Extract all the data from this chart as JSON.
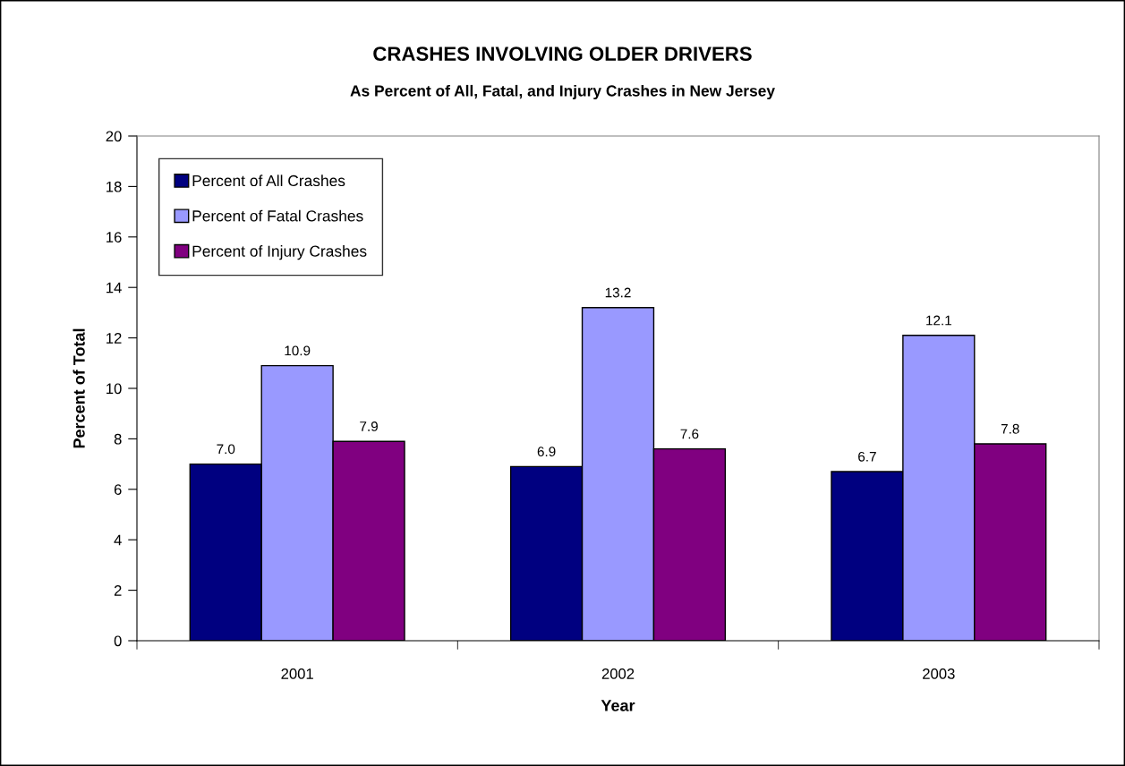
{
  "chart_data": {
    "type": "bar",
    "title": "CRASHES INVOLVING OLDER DRIVERS",
    "subtitle": "As Percent of All, Fatal, and Injury Crashes in New Jersey",
    "xlabel": "Year",
    "ylabel": "Percent of Total",
    "categories": [
      "2001",
      "2002",
      "2003"
    ],
    "series": [
      {
        "name": "Percent of All Crashes",
        "color": "#000080",
        "values": [
          7.0,
          6.9,
          6.7
        ],
        "value_labels": [
          "7.0",
          "6.9",
          "6.7"
        ]
      },
      {
        "name": "Percent of Fatal Crashes",
        "color": "#9999ff",
        "values": [
          10.9,
          13.2,
          12.1
        ],
        "value_labels": [
          "10.9",
          "13.2",
          "12.1"
        ]
      },
      {
        "name": "Percent of Injury Crashes",
        "color": "#800080",
        "values": [
          7.9,
          7.6,
          7.8
        ],
        "value_labels": [
          "7.9",
          "7.6",
          "7.8"
        ]
      }
    ],
    "ylim": [
      0,
      20
    ],
    "yticks": [
      0,
      2,
      4,
      6,
      8,
      10,
      12,
      14,
      16,
      18,
      20
    ],
    "grid": false,
    "legend": "top left"
  }
}
